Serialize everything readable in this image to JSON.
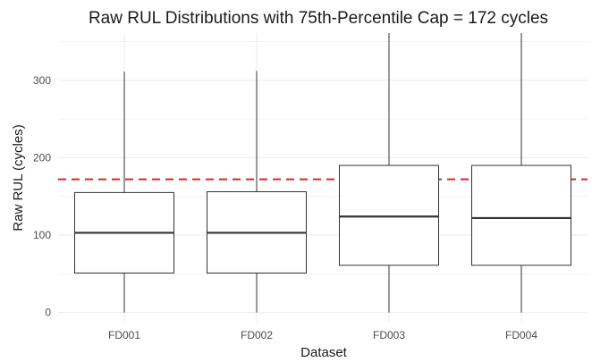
{
  "chart_data": {
    "type": "boxplot",
    "title": "Raw RUL Distributions with 75th-Percentile Cap = 172 cycles",
    "xlabel": "Dataset",
    "ylabel": "Raw RUL (cycles)",
    "categories": [
      "FD001",
      "FD002",
      "FD003",
      "FD004"
    ],
    "boxes": [
      {
        "min": 0,
        "q1": 51,
        "median": 103,
        "q3": 155,
        "max": 311
      },
      {
        "min": 0,
        "q1": 51,
        "median": 103,
        "q3": 156,
        "max": 312
      },
      {
        "min": 0,
        "q1": 61,
        "median": 124,
        "q3": 190,
        "max": 361
      },
      {
        "min": 0,
        "q1": 61,
        "median": 122,
        "q3": 190,
        "max": 361
      }
    ],
    "reference_line": {
      "value": 172,
      "color": "#d62728",
      "style": "dashed"
    },
    "ylim": [
      -12,
      361
    ],
    "y_ticks": [
      0,
      100,
      200,
      300
    ],
    "grid": true,
    "colors": {
      "box_fill": "#ffffff",
      "box_stroke": "#333333",
      "grid": "#ebebeb"
    }
  }
}
